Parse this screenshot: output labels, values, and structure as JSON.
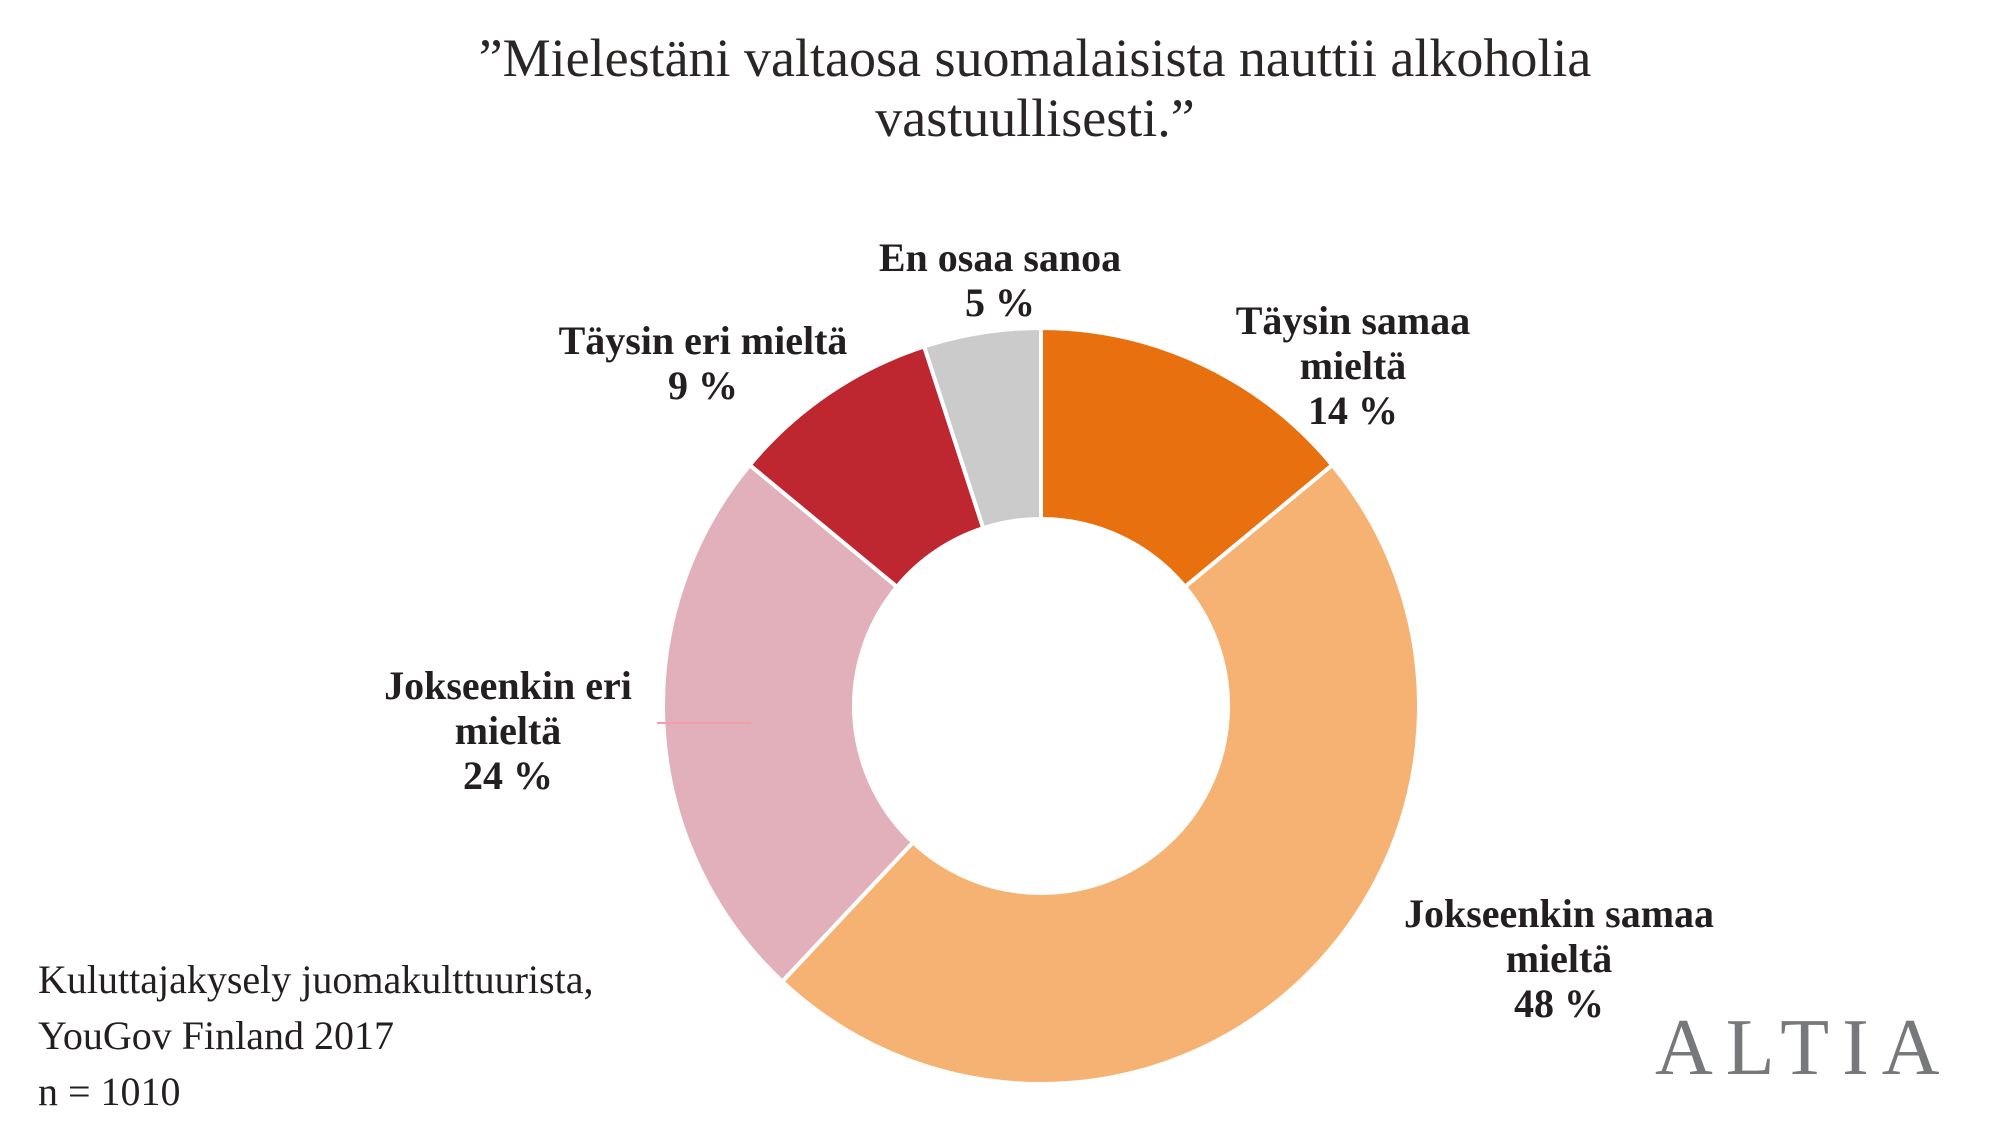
{
  "title": {
    "full": "”Mielestäni valtaosa suomalaisista nauttii alkoholia vastuullisesti.”",
    "line1": "”Mielestäni valtaosa suomalaisista nauttii alkoholia",
    "line2": "vastuullisesti.”"
  },
  "chart_data": {
    "type": "pie",
    "subtype": "donut",
    "title": "”Mielestäni valtaosa suomalaisista nauttii alkoholia vastuullisesti.”",
    "unit": "%",
    "start_angle": "12 o'clock, clockwise",
    "legend_position": "outside-callouts",
    "categories": [
      "Täysin samaa mieltä",
      "Jokseenkin samaa mieltä",
      "Jokseenkin eri mieltä",
      "Täysin eri mieltä",
      "En osaa sanoa"
    ],
    "values": [
      14,
      48,
      24,
      9,
      5
    ],
    "segments": [
      {
        "label": "Täysin samaa mieltä",
        "pct": 14,
        "pct_label": "14 %",
        "color": "#E8700E"
      },
      {
        "label": "Jokseenkin samaa mieltä",
        "pct": 48,
        "pct_label": "48 %",
        "color": "#F5B272"
      },
      {
        "label": "Jokseenkin eri mieltä",
        "pct": 24,
        "pct_label": "24 %",
        "color": "#E2B0BA"
      },
      {
        "label": "Täysin eri mieltä",
        "pct": 9,
        "pct_label": "9 %",
        "color": "#BE2730"
      },
      {
        "label": "En osaa sanoa",
        "pct": 5,
        "pct_label": "5 %",
        "color": "#CBCBCB"
      }
    ],
    "gap_color": "#FFFFFF",
    "source": "Kuluttajakysely juomakulttuurista, YouGov Finland 2017",
    "sample": "n = 1010"
  },
  "source_block": {
    "line1": "Kuluttajakysely juomakulttuurista,",
    "line2": "YouGov Finland 2017",
    "line3": "n = 1010"
  },
  "logo": {
    "text": "ALTIA",
    "color": "#77787B"
  }
}
